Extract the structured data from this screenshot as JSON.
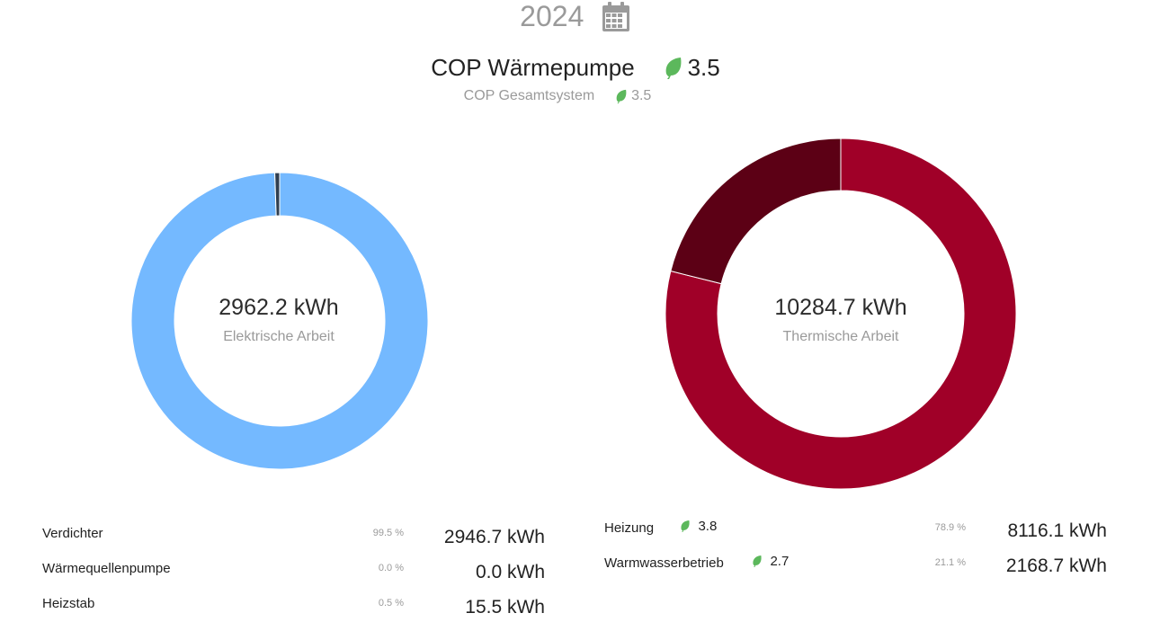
{
  "header": {
    "year": "2024",
    "calendar_icon": "calendar-icon",
    "cop_label": "COP Wärmepumpe",
    "cop_value": "3.5",
    "cop_system_label": "COP Gesamtsystem",
    "cop_system_value": "3.5",
    "leaf_icon": "leaf-icon",
    "leaf_color": "#5cb85c"
  },
  "electric": {
    "total": "2962.2 kWh",
    "subtitle": "Elektrische Arbeit",
    "rows": [
      {
        "label": "Verdichter",
        "percent": "99.5 %",
        "value": "2946.7 kWh"
      },
      {
        "label": "Wärmequellenpumpe",
        "percent": "0.0 %",
        "value": "0.0 kWh"
      },
      {
        "label": "Heizstab",
        "percent": "0.5 %",
        "value": "15.5 kWh"
      }
    ]
  },
  "thermal": {
    "total": "10284.7 kWh",
    "subtitle": "Thermische Arbeit",
    "rows": [
      {
        "label": "Heizung",
        "cop": "3.8",
        "percent": "78.9 %",
        "value": "8116.1 kWh"
      },
      {
        "label": "Warmwasserbetrieb",
        "cop": "2.7",
        "percent": "21.1 %",
        "value": "2168.7 kWh"
      }
    ]
  },
  "chart_data": [
    {
      "type": "pie",
      "categories": [
        "Verdichter",
        "Wärmequellenpumpe",
        "Heizstab"
      ],
      "values": [
        2946.7,
        0.0,
        15.5
      ],
      "colors": [
        "#74b9ff",
        "#4a6fa5",
        "#2f3e50"
      ]
    },
    {
      "type": "pie",
      "categories": [
        "Heizung",
        "Warmwasserbetrieb"
      ],
      "values": [
        8116.1,
        2168.7
      ],
      "colors": [
        "#a00028",
        "#5c0015"
      ]
    }
  ]
}
